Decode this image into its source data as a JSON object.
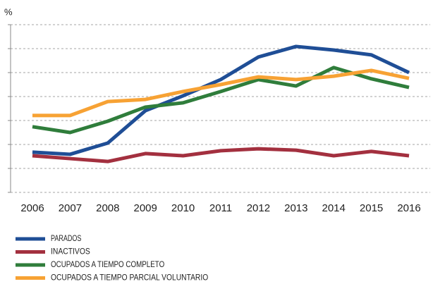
{
  "chart_data": {
    "type": "line",
    "y_label": "%",
    "categories": [
      "2006",
      "2007",
      "2008",
      "2009",
      "2010",
      "2011",
      "2012",
      "2013",
      "2014",
      "2015",
      "2016"
    ],
    "series": [
      {
        "name": "PARADOS",
        "color": "#1f4e96",
        "values": [
          1.68,
          1.59,
          2.06,
          3.41,
          4.03,
          4.71,
          5.65,
          6.09,
          5.94,
          5.74,
          5.0
        ]
      },
      {
        "name": "INACTIVOS",
        "color": "#a3303f",
        "values": [
          1.53,
          1.41,
          1.29,
          1.62,
          1.53,
          1.74,
          1.82,
          1.76,
          1.53,
          1.71,
          1.53
        ]
      },
      {
        "name": "OCUPADOS A TIEMPO COMPLETO",
        "color": "#2f7d3b",
        "values": [
          2.74,
          2.5,
          2.97,
          3.56,
          3.74,
          4.21,
          4.71,
          4.44,
          5.21,
          4.74,
          4.38
        ]
      },
      {
        "name": "OCUPADOS A TIEMPO PARCIAL VOLUNTARIO",
        "color": "#f7a234",
        "values": [
          3.21,
          3.21,
          3.79,
          3.88,
          4.21,
          4.5,
          4.82,
          4.71,
          4.85,
          5.09,
          4.76
        ]
      }
    ],
    "ylim": [
      0,
      7
    ],
    "yticks": [
      0,
      1,
      2,
      3,
      4,
      5,
      6,
      7
    ],
    "grid": true,
    "legend": "bottom"
  }
}
